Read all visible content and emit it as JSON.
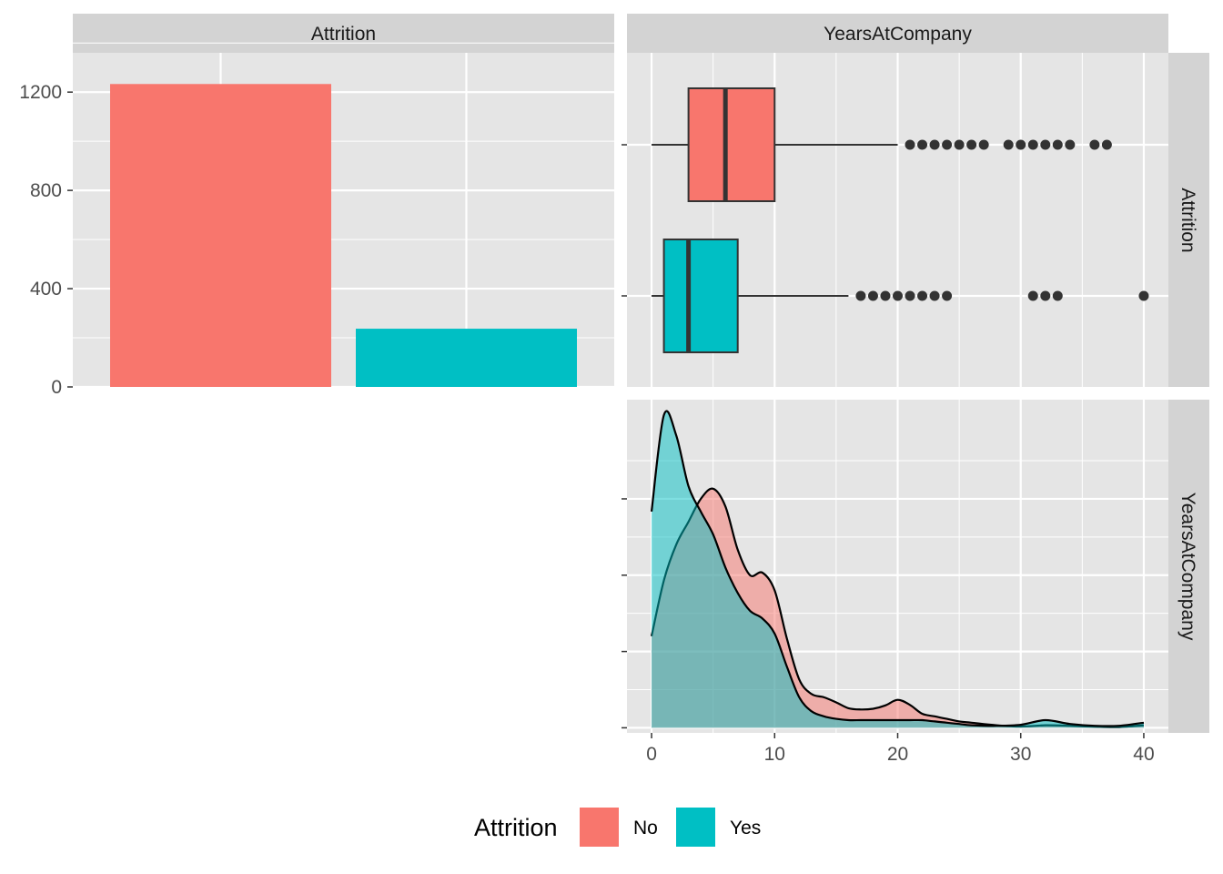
{
  "colors": {
    "no": "#F8766D",
    "yes": "#00BFC4"
  },
  "legend": {
    "title": "Attrition",
    "items": [
      {
        "label": "No",
        "color": "#F8766D"
      },
      {
        "label": "Yes",
        "color": "#00BFC4"
      }
    ]
  },
  "chart_data": [
    {
      "type": "bar",
      "strip_label": "Attrition",
      "categories": [
        "No",
        "Yes"
      ],
      "values": [
        1233,
        237
      ],
      "ylim": [
        0,
        1360
      ],
      "yticks": [
        0,
        400,
        800,
        1200
      ],
      "grid": true
    },
    {
      "type": "boxplot",
      "strip_label": "YearsAtCompany",
      "row_strip_label": "Attrition",
      "xlim": [
        -2,
        42
      ],
      "series": [
        {
          "name": "No",
          "min": 0,
          "q1": 3,
          "median": 6,
          "q3": 10,
          "whisker_high": 20,
          "outliers": [
            21,
            22,
            23,
            24,
            25,
            26,
            27,
            29,
            30,
            31,
            32,
            33,
            34,
            36,
            37
          ]
        },
        {
          "name": "Yes",
          "min": 0,
          "q1": 1,
          "median": 3,
          "q3": 7,
          "whisker_high": 16,
          "outliers": [
            17,
            18,
            19,
            20,
            21,
            22,
            23,
            24,
            31,
            32,
            33,
            40
          ]
        }
      ],
      "grid": true
    },
    {
      "type": "area",
      "strip_label": "YearsAtCompany",
      "xlim": [
        -2,
        42
      ],
      "xticks": [
        0,
        10,
        20,
        30,
        40
      ],
      "ylim": [
        -0.002,
        0.129
      ],
      "series": [
        {
          "name": "No",
          "x": [
            0,
            1,
            2,
            3,
            4,
            5,
            6,
            7,
            8,
            9,
            10,
            11,
            12,
            13,
            14,
            15,
            16,
            17,
            18,
            19,
            20,
            21,
            22,
            23,
            24,
            25,
            26,
            28,
            30,
            32,
            34,
            36,
            38,
            40
          ],
          "y": [
            0.036,
            0.058,
            0.072,
            0.081,
            0.09,
            0.094,
            0.087,
            0.07,
            0.06,
            0.061,
            0.054,
            0.035,
            0.019,
            0.0133,
            0.012,
            0.01,
            0.0077,
            0.0072,
            0.0075,
            0.0088,
            0.011,
            0.009,
            0.0055,
            0.0045,
            0.0035,
            0.0025,
            0.002,
            0.001,
            0.0005,
            0.001,
            0.0008,
            0.0004,
            0.0003,
            0.001
          ]
        },
        {
          "name": "Yes",
          "x": [
            0,
            1,
            2,
            3,
            4,
            5,
            6,
            7,
            8,
            9,
            10,
            11,
            12,
            13,
            14,
            15,
            16,
            17,
            18,
            19,
            20,
            21,
            22,
            23,
            24,
            25,
            26,
            28,
            30,
            32,
            34,
            36,
            38,
            40
          ],
          "y": [
            0.085,
            0.123,
            0.115,
            0.095,
            0.085,
            0.076,
            0.063,
            0.053,
            0.046,
            0.043,
            0.037,
            0.024,
            0.012,
            0.0065,
            0.0045,
            0.0035,
            0.003,
            0.003,
            0.003,
            0.003,
            0.003,
            0.003,
            0.003,
            0.0025,
            0.002,
            0.0015,
            0.001,
            0.0008,
            0.0012,
            0.003,
            0.0015,
            0.0008,
            0.0008,
            0.002
          ]
        }
      ],
      "grid": true
    }
  ]
}
